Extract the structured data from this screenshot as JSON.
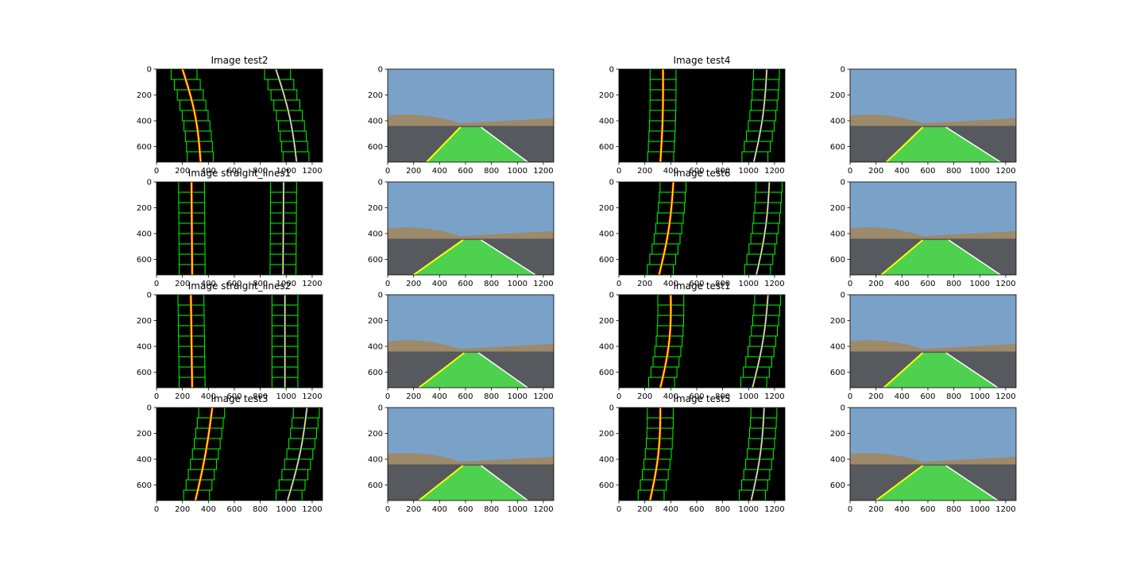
{
  "figure": {
    "titles": [
      "Image test2",
      "Image test4",
      "Image straight_lines1",
      "Image test6",
      "Image straight_lines2",
      "Image test1",
      "Image test3",
      "Image test5"
    ]
  },
  "chart_data": [
    {
      "type": "other",
      "title": "Image test2",
      "kind": "sliding-window lane detection",
      "x_ticks": [
        0,
        200,
        400,
        600,
        800,
        1000,
        1200
      ],
      "y_ticks": [
        0,
        200,
        400,
        600
      ],
      "xlim": [
        0,
        1280
      ],
      "ylim": [
        720,
        0
      ],
      "left_lane": {
        "top_x": 200,
        "bottom_x": 340,
        "bend": 0.7,
        "window_width": 200
      },
      "right_lane": {
        "top_x": 920,
        "bottom_x": 1080,
        "bend": 0.6,
        "window_width": 200
      }
    },
    {
      "type": "other",
      "title": "",
      "kind": "lane overlay on road photo",
      "x_ticks": [
        0,
        200,
        400,
        600,
        800,
        1000,
        1200
      ],
      "y_ticks": [
        0,
        200,
        400,
        600
      ],
      "lane_polygon": {
        "top_left_x": 560,
        "top_right_x": 720,
        "bottom_left_x": 300,
        "bottom_right_x": 1080,
        "top_y": 450
      }
    },
    {
      "type": "other",
      "title": "Image test4",
      "kind": "sliding-window lane detection",
      "x_ticks": [
        0,
        200,
        400,
        600,
        800,
        1000,
        1200
      ],
      "y_ticks": [
        0,
        200,
        400,
        600
      ],
      "xlim": [
        0,
        1280
      ],
      "ylim": [
        720,
        0
      ],
      "left_lane": {
        "top_x": 340,
        "bottom_x": 320,
        "bend": 0.2,
        "window_width": 200
      },
      "right_lane": {
        "top_x": 1140,
        "bottom_x": 1040,
        "bend": 0.5,
        "window_width": 200
      }
    },
    {
      "type": "other",
      "title": "",
      "kind": "lane overlay on road photo",
      "x_ticks": [
        0,
        200,
        400,
        600,
        800,
        1000,
        1200
      ],
      "y_ticks": [
        0,
        200,
        400,
        600
      ],
      "lane_polygon": {
        "top_left_x": 560,
        "top_right_x": 740,
        "bottom_left_x": 280,
        "bottom_right_x": 1160,
        "top_y": 450
      }
    },
    {
      "type": "other",
      "title": "Image straight_lines1",
      "kind": "sliding-window lane detection",
      "x_ticks": [
        0,
        200,
        400,
        600,
        800,
        1000,
        1200
      ],
      "y_ticks": [
        0,
        200,
        400,
        600
      ],
      "xlim": [
        0,
        1280
      ],
      "ylim": [
        720,
        0
      ],
      "left_lane": {
        "top_x": 270,
        "bottom_x": 275,
        "bend": 0.0,
        "window_width": 200
      },
      "right_lane": {
        "top_x": 980,
        "bottom_x": 975,
        "bend": 0.0,
        "window_width": 200
      }
    },
    {
      "type": "other",
      "title": "",
      "kind": "lane overlay on road photo",
      "x_ticks": [
        0,
        200,
        400,
        600,
        800,
        1000,
        1200
      ],
      "y_ticks": [
        0,
        200,
        400,
        600
      ],
      "lane_polygon": {
        "top_left_x": 580,
        "top_right_x": 720,
        "bottom_left_x": 200,
        "bottom_right_x": 1140,
        "top_y": 450
      }
    },
    {
      "type": "other",
      "title": "Image test6",
      "kind": "sliding-window lane detection",
      "x_ticks": [
        0,
        200,
        400,
        600,
        800,
        1000,
        1200
      ],
      "y_ticks": [
        0,
        200,
        400,
        600
      ],
      "xlim": [
        0,
        1280
      ],
      "ylim": [
        720,
        0
      ],
      "left_lane": {
        "top_x": 420,
        "bottom_x": 310,
        "bend": 0.5,
        "window_width": 200
      },
      "right_lane": {
        "top_x": 1160,
        "bottom_x": 1060,
        "bend": 0.5,
        "window_width": 200
      }
    },
    {
      "type": "other",
      "title": "",
      "kind": "lane overlay on road photo",
      "x_ticks": [
        0,
        200,
        400,
        600,
        800,
        1000,
        1200
      ],
      "y_ticks": [
        0,
        200,
        400,
        600
      ],
      "lane_polygon": {
        "top_left_x": 560,
        "top_right_x": 760,
        "bottom_left_x": 240,
        "bottom_right_x": 1160,
        "top_y": 450
      }
    },
    {
      "type": "other",
      "title": "Image straight_lines2",
      "kind": "sliding-window lane detection",
      "x_ticks": [
        0,
        200,
        400,
        600,
        800,
        1000,
        1200
      ],
      "y_ticks": [
        0,
        200,
        400,
        600
      ],
      "xlim": [
        0,
        1280
      ],
      "ylim": [
        720,
        0
      ],
      "left_lane": {
        "top_x": 265,
        "bottom_x": 275,
        "bend": 0.0,
        "window_width": 200
      },
      "right_lane": {
        "top_x": 990,
        "bottom_x": 990,
        "bend": 0.0,
        "window_width": 200
      }
    },
    {
      "type": "other",
      "title": "",
      "kind": "lane overlay on road photo",
      "x_ticks": [
        0,
        200,
        400,
        600,
        800,
        1000,
        1200
      ],
      "y_ticks": [
        0,
        200,
        400,
        600
      ],
      "lane_polygon": {
        "top_left_x": 590,
        "top_right_x": 700,
        "bottom_left_x": 240,
        "bottom_right_x": 1080,
        "top_y": 450
      }
    },
    {
      "type": "other",
      "title": "Image test1",
      "kind": "sliding-window lane detection",
      "x_ticks": [
        0,
        200,
        400,
        600,
        800,
        1000,
        1200
      ],
      "y_ticks": [
        0,
        200,
        400,
        600
      ],
      "xlim": [
        0,
        1280
      ],
      "ylim": [
        720,
        0
      ],
      "left_lane": {
        "top_x": 400,
        "bottom_x": 320,
        "bend": 0.7,
        "window_width": 200
      },
      "right_lane": {
        "top_x": 1150,
        "bottom_x": 1030,
        "bend": 0.5,
        "window_width": 200
      }
    },
    {
      "type": "other",
      "title": "",
      "kind": "lane overlay on road photo",
      "x_ticks": [
        0,
        200,
        400,
        600,
        800,
        1000,
        1200
      ],
      "y_ticks": [
        0,
        200,
        400,
        600
      ],
      "lane_polygon": {
        "top_left_x": 560,
        "top_right_x": 740,
        "bottom_left_x": 260,
        "bottom_right_x": 1140,
        "top_y": 450
      }
    },
    {
      "type": "other",
      "title": "Image test3",
      "kind": "sliding-window lane detection",
      "x_ticks": [
        0,
        200,
        400,
        600,
        800,
        1000,
        1200
      ],
      "y_ticks": [
        0,
        200,
        400,
        600
      ],
      "xlim": [
        0,
        1280
      ],
      "ylim": [
        720,
        0
      ],
      "left_lane": {
        "top_x": 430,
        "bottom_x": 300,
        "bend": 0.3,
        "window_width": 200
      },
      "right_lane": {
        "top_x": 1160,
        "bottom_x": 1010,
        "bend": 0.5,
        "window_width": 200
      }
    },
    {
      "type": "other",
      "title": "",
      "kind": "lane overlay on road photo",
      "x_ticks": [
        0,
        200,
        400,
        600,
        800,
        1000,
        1200
      ],
      "y_ticks": [
        0,
        200,
        400,
        600
      ],
      "lane_polygon": {
        "top_left_x": 580,
        "top_right_x": 720,
        "bottom_left_x": 240,
        "bottom_right_x": 1080,
        "top_y": 450
      }
    },
    {
      "type": "other",
      "title": "Image test5",
      "kind": "sliding-window lane detection",
      "x_ticks": [
        0,
        200,
        400,
        600,
        800,
        1000,
        1200
      ],
      "y_ticks": [
        0,
        200,
        400,
        600
      ],
      "xlim": [
        0,
        1280
      ],
      "ylim": [
        720,
        0
      ],
      "left_lane": {
        "top_x": 320,
        "bottom_x": 240,
        "bend": 0.6,
        "window_width": 200
      },
      "right_lane": {
        "top_x": 1120,
        "bottom_x": 1020,
        "bend": 0.5,
        "window_width": 200
      }
    },
    {
      "type": "other",
      "title": "",
      "kind": "lane overlay on road photo",
      "x_ticks": [
        0,
        200,
        400,
        600,
        800,
        1000,
        1200
      ],
      "y_ticks": [
        0,
        200,
        400,
        600
      ],
      "lane_polygon": {
        "top_left_x": 560,
        "top_right_x": 740,
        "bottom_left_x": 200,
        "bottom_right_x": 1140,
        "top_y": 450
      }
    }
  ],
  "colors": {
    "window_box": "#00ff00",
    "fit_line": "#ffff00",
    "left_pixels": "#ff0000",
    "right_pixels": "#0000ff",
    "lane_fill": "#4ce64c",
    "sky": "#7aa2c9",
    "road": "#56595e",
    "hill": "#9c8a6a"
  }
}
